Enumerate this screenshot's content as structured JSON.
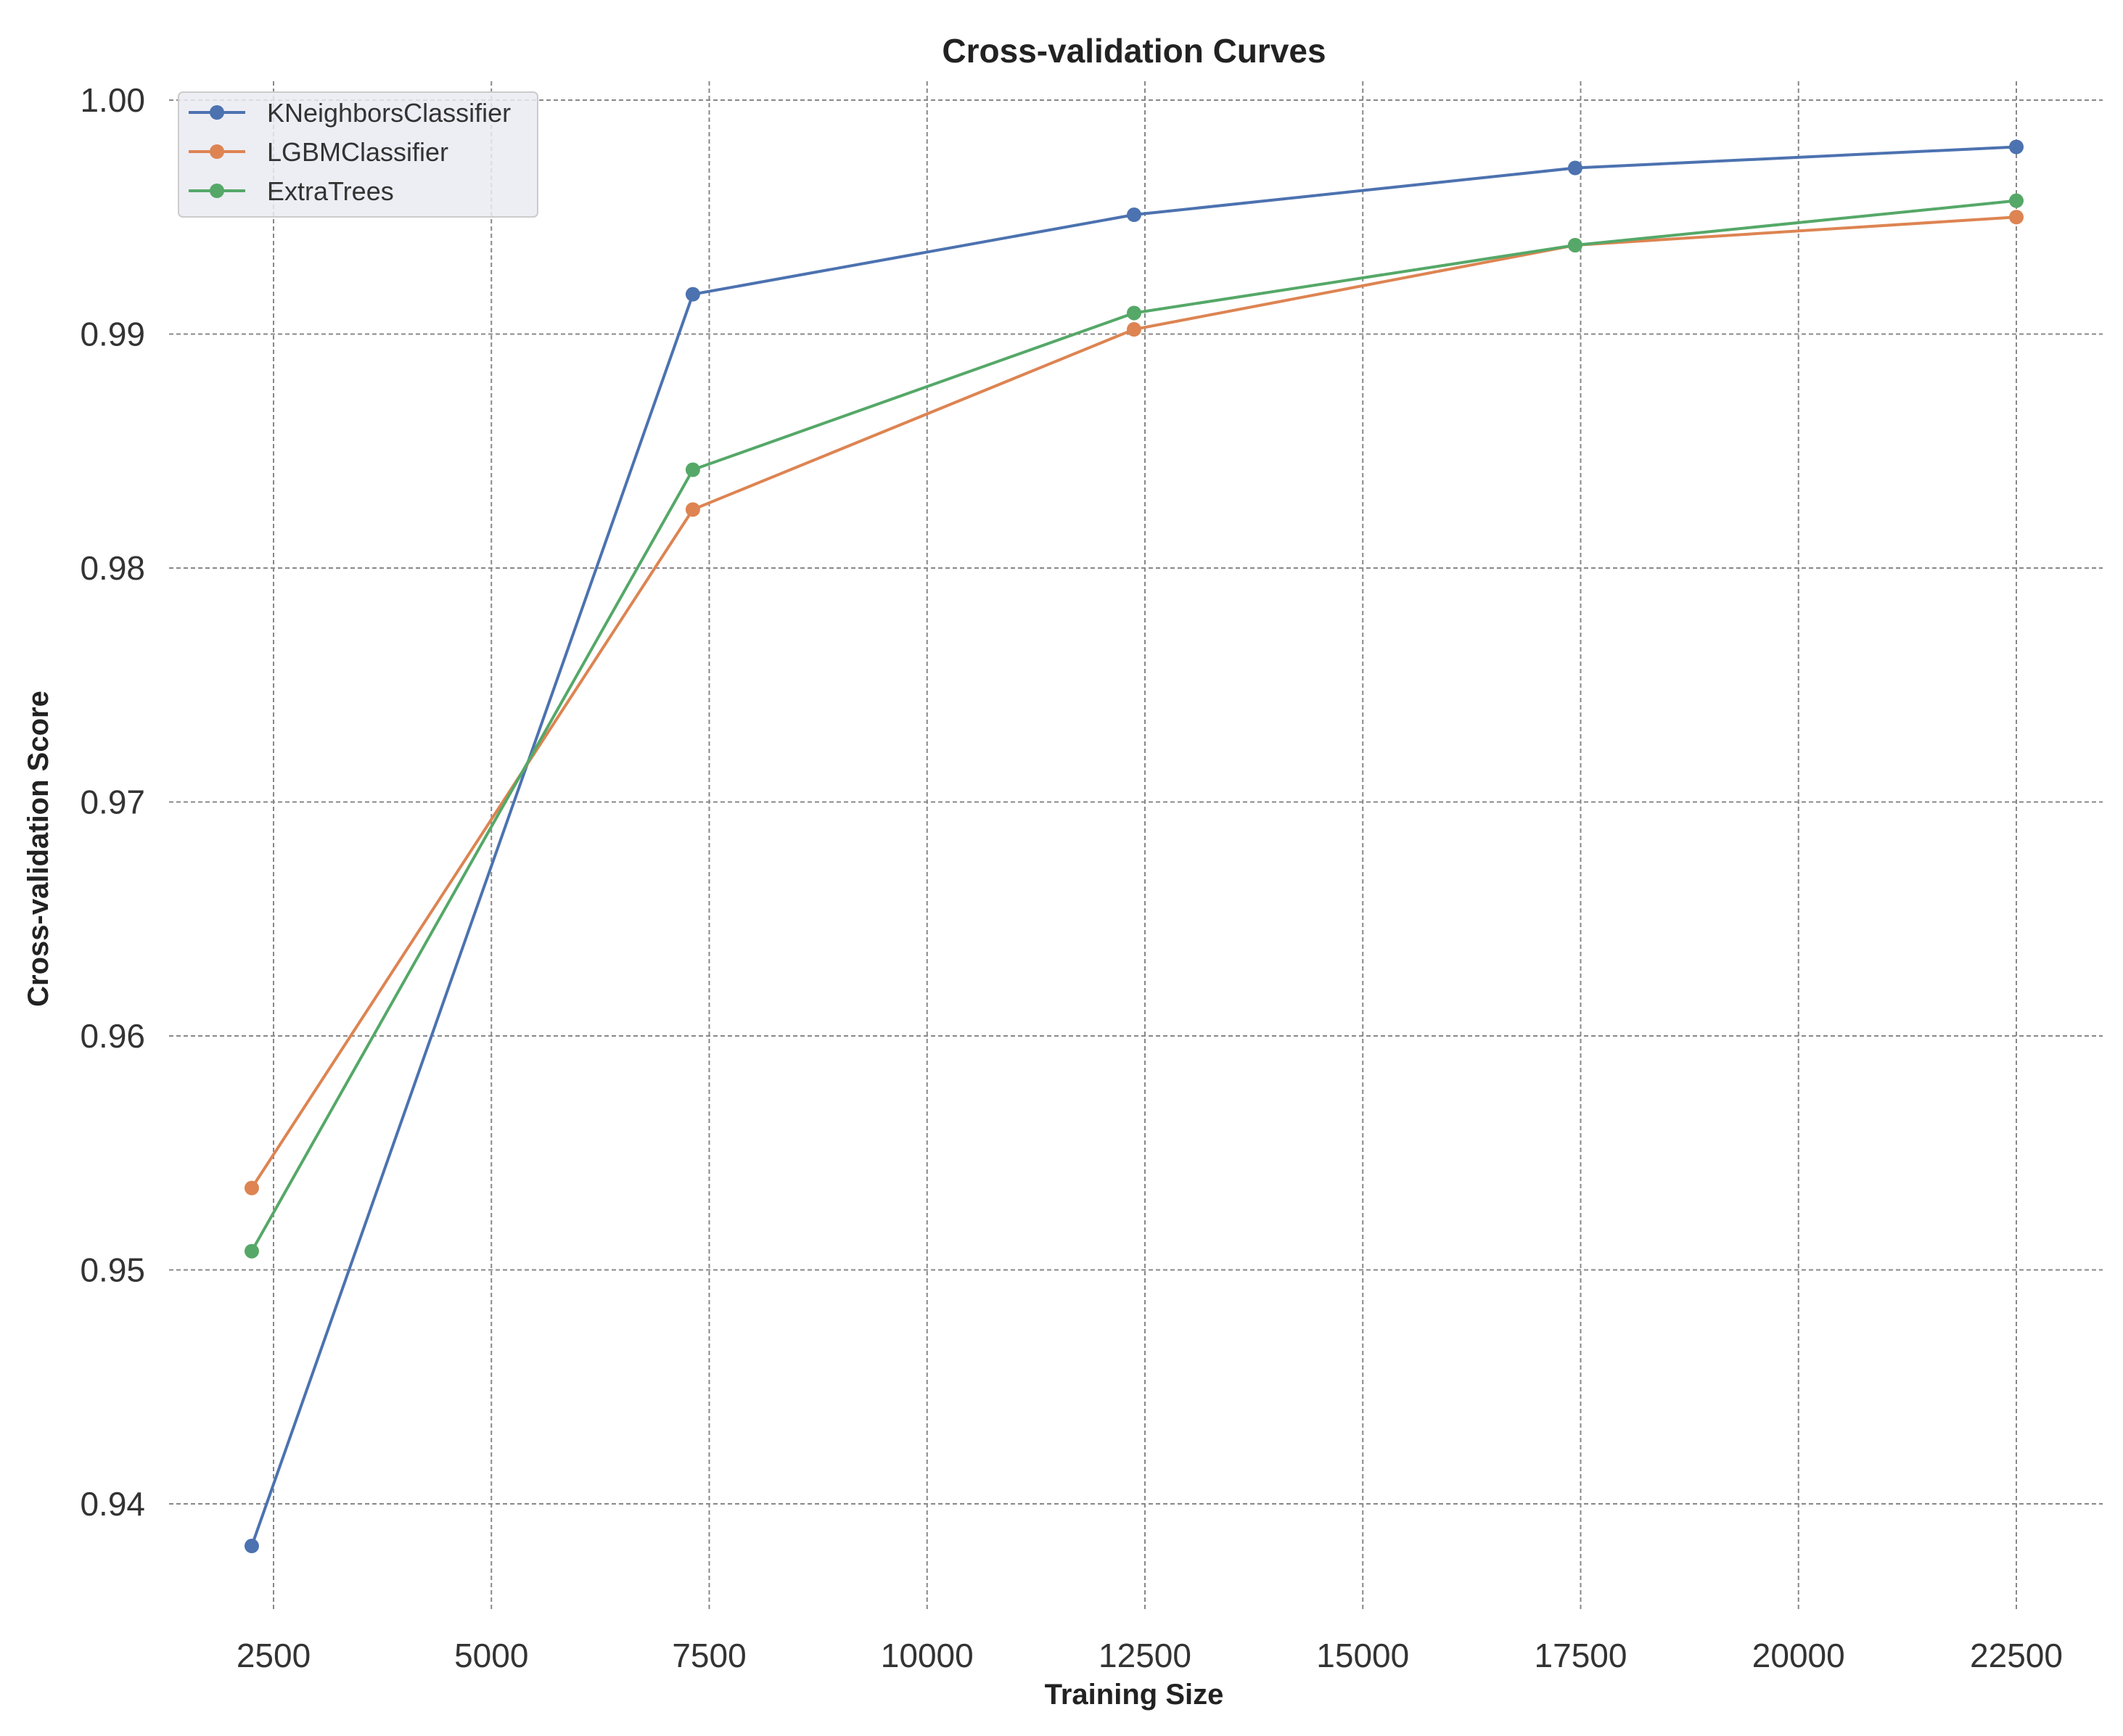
{
  "chart_data": {
    "type": "line",
    "title": "Cross-validation Curves",
    "xlabel": "Training Size",
    "ylabel": "Cross-validation Score",
    "xlim": [
      1300,
      23500
    ],
    "ylim": [
      0.9355,
      1.0008
    ],
    "xticks": [
      2500,
      5000,
      7500,
      10000,
      12500,
      15000,
      17500,
      20000,
      22500
    ],
    "xtick_labels": [
      "2500",
      "5000",
      "7500",
      "10000",
      "12500",
      "15000",
      "17500",
      "20000",
      "22500"
    ],
    "yticks": [
      0.94,
      0.95,
      0.96,
      0.97,
      0.98,
      0.99,
      1.0
    ],
    "ytick_labels": [
      "0.94",
      "0.95",
      "0.96",
      "0.97",
      "0.98",
      "0.99",
      "1.00"
    ],
    "grid": true,
    "legend_position": "top-left",
    "x": [
      2250,
      7312,
      12375,
      17437,
      22500
    ],
    "series": [
      {
        "name": "KNeighborsClassifier",
        "color": "#4c72b0",
        "values": [
          0.9382,
          0.9917,
          0.9951,
          0.9971,
          0.998
        ]
      },
      {
        "name": "LGBMClassifier",
        "color": "#dd8452",
        "values": [
          0.9535,
          0.9825,
          0.9902,
          0.9938,
          0.995
        ]
      },
      {
        "name": "ExtraTrees",
        "color": "#55a868",
        "values": [
          0.9508,
          0.9842,
          0.9909,
          0.9938,
          0.9957
        ]
      }
    ]
  }
}
